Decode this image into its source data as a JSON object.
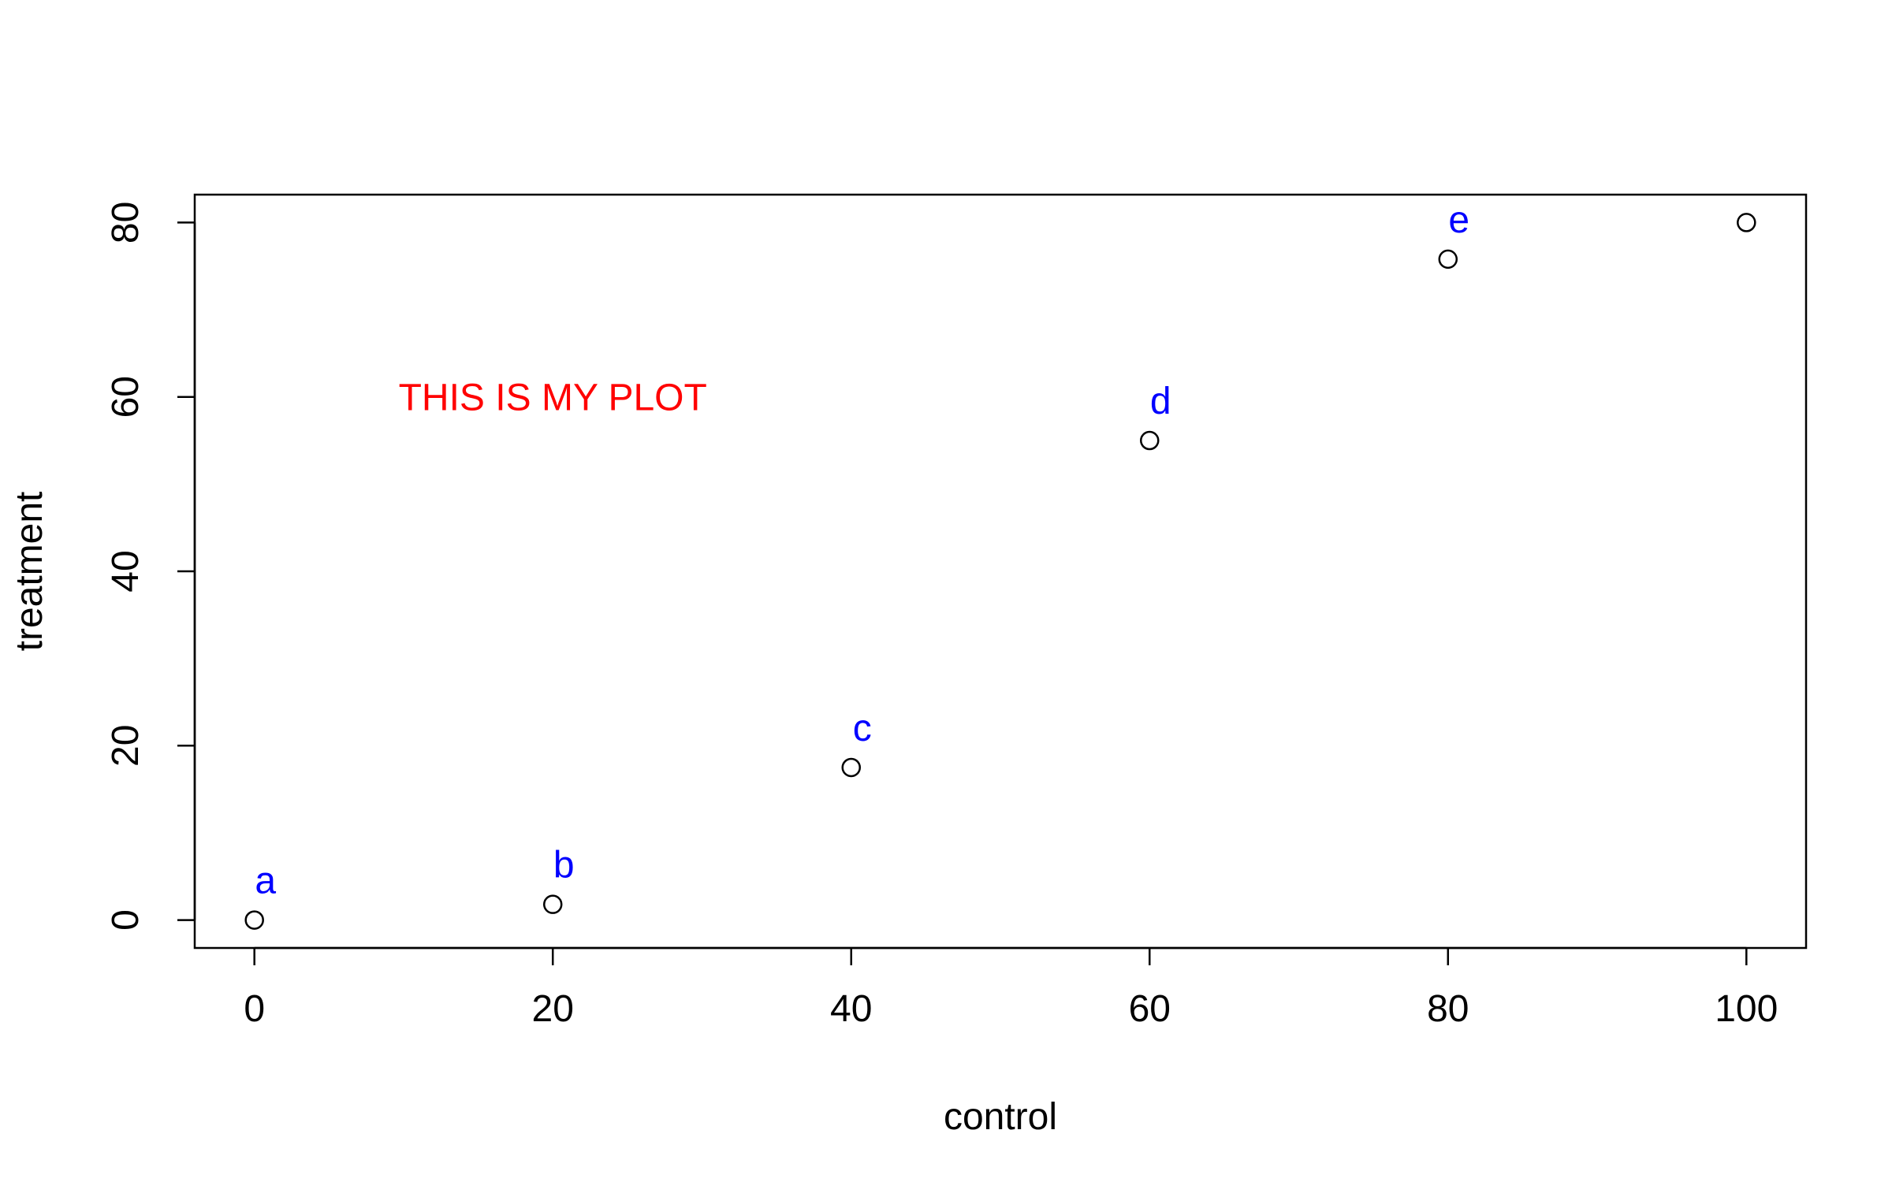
{
  "chart_data": {
    "type": "scatter",
    "title": "",
    "xlabel": "control",
    "ylabel": "treatment",
    "xlim": [
      -4,
      104
    ],
    "ylim": [
      -3.2,
      83.2
    ],
    "xticks": [
      0,
      20,
      40,
      60,
      80,
      100
    ],
    "yticks": [
      0,
      20,
      40,
      60,
      80
    ],
    "grid": false,
    "points": [
      {
        "x": 0,
        "y": 0
      },
      {
        "x": 20,
        "y": 1.8
      },
      {
        "x": 40,
        "y": 17.5
      },
      {
        "x": 60,
        "y": 55
      },
      {
        "x": 80,
        "y": 75.8
      },
      {
        "x": 100,
        "y": 80
      }
    ],
    "point_labels": [
      {
        "text": "a",
        "x": 0,
        "y": 0
      },
      {
        "text": "b",
        "x": 20,
        "y": 1.8
      },
      {
        "text": "c",
        "x": 40,
        "y": 17.5
      },
      {
        "text": "d",
        "x": 60,
        "y": 55
      },
      {
        "text": "e",
        "x": 80,
        "y": 75.8
      }
    ],
    "point_label_color": "#0000ff",
    "annotation": {
      "text": "THIS IS MY PLOT",
      "x": 20,
      "y": 60,
      "color": "#ff0000"
    },
    "marker": "open-circle",
    "marker_color": "#000000"
  }
}
